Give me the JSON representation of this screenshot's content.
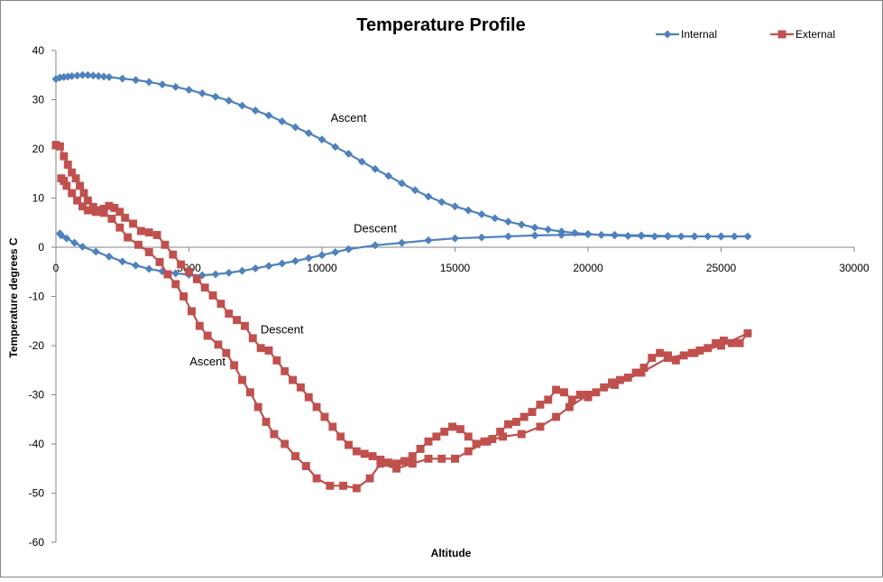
{
  "chart_data": {
    "type": "line",
    "title": "Temperature Profile",
    "xlabel": "Altitude",
    "ylabel": "Temperature degrees C",
    "xlim": [
      0,
      30000
    ],
    "ylim": [
      -60,
      40
    ],
    "x_ticks": [
      0,
      5000,
      10000,
      15000,
      20000,
      25000,
      30000
    ],
    "y_ticks": [
      40,
      30,
      20,
      10,
      0,
      -10,
      -20,
      -30,
      -40,
      -50,
      -60
    ],
    "grid": "horizontal major at 0 only",
    "legend_position": "top-right",
    "colors": {
      "internal": "#4f81bd",
      "external": "#c0504d",
      "axis": "#868686",
      "text": "#000000"
    },
    "series": [
      {
        "name": "Internal",
        "marker": "diamond",
        "color": "#4f81bd",
        "points": [
          [
            0,
            34.2
          ],
          [
            150,
            34.5
          ],
          [
            300,
            34.6
          ],
          [
            450,
            34.7
          ],
          [
            600,
            34.8
          ],
          [
            800,
            34.9
          ],
          [
            1000,
            35.0
          ],
          [
            1200,
            35.0
          ],
          [
            1400,
            34.9
          ],
          [
            1600,
            34.8
          ],
          [
            1800,
            34.7
          ],
          [
            2000,
            34.6
          ],
          [
            2500,
            34.3
          ],
          [
            3000,
            34.0
          ],
          [
            3500,
            33.6
          ],
          [
            4000,
            33.1
          ],
          [
            4500,
            32.6
          ],
          [
            5000,
            32.0
          ],
          [
            5500,
            31.3
          ],
          [
            6000,
            30.6
          ],
          [
            6500,
            29.8
          ],
          [
            7000,
            28.8
          ],
          [
            7500,
            27.8
          ],
          [
            8000,
            26.8
          ],
          [
            8500,
            25.6
          ],
          [
            9000,
            24.4
          ],
          [
            9500,
            23.2
          ],
          [
            10000,
            21.9
          ],
          [
            10500,
            20.4
          ],
          [
            11000,
            19.0
          ],
          [
            11500,
            17.4
          ],
          [
            12000,
            15.9
          ],
          [
            12500,
            14.5
          ],
          [
            13000,
            13.0
          ],
          [
            13500,
            11.6
          ],
          [
            14000,
            10.3
          ],
          [
            14500,
            9.2
          ],
          [
            15000,
            8.3
          ],
          [
            15500,
            7.5
          ],
          [
            16000,
            6.7
          ],
          [
            16500,
            5.9
          ],
          [
            17000,
            5.2
          ],
          [
            17500,
            4.6
          ],
          [
            18000,
            4.0
          ],
          [
            18500,
            3.6
          ],
          [
            19000,
            3.2
          ],
          [
            19500,
            2.9
          ],
          [
            20000,
            2.7
          ],
          [
            20500,
            2.5
          ],
          [
            21000,
            2.4
          ],
          [
            21500,
            2.3
          ],
          [
            22000,
            2.3
          ],
          [
            22500,
            2.2
          ],
          [
            23000,
            2.2
          ],
          [
            23500,
            2.2
          ],
          [
            24000,
            2.2
          ],
          [
            24500,
            2.2
          ],
          [
            25000,
            2.2
          ],
          [
            25500,
            2.2
          ],
          [
            26000,
            2.2
          ],
          [
            25000,
            2.2
          ],
          [
            24000,
            2.2
          ],
          [
            23000,
            2.3
          ],
          [
            22000,
            2.4
          ],
          [
            21000,
            2.5
          ],
          [
            20000,
            2.6
          ],
          [
            19000,
            2.5
          ],
          [
            18000,
            2.4
          ],
          [
            17000,
            2.2
          ],
          [
            16000,
            2.0
          ],
          [
            15000,
            1.8
          ],
          [
            14000,
            1.4
          ],
          [
            13000,
            0.9
          ],
          [
            12000,
            0.4
          ],
          [
            11000,
            -0.4
          ],
          [
            10500,
            -1.0
          ],
          [
            10000,
            -1.6
          ],
          [
            9500,
            -2.2
          ],
          [
            9000,
            -2.8
          ],
          [
            8500,
            -3.3
          ],
          [
            8000,
            -3.8
          ],
          [
            7500,
            -4.3
          ],
          [
            7000,
            -4.8
          ],
          [
            6500,
            -5.2
          ],
          [
            6000,
            -5.5
          ],
          [
            5500,
            -5.7
          ],
          [
            5000,
            -5.6
          ],
          [
            4500,
            -5.3
          ],
          [
            4000,
            -4.9
          ],
          [
            3500,
            -4.4
          ],
          [
            3000,
            -3.7
          ],
          [
            2500,
            -2.9
          ],
          [
            2000,
            -1.9
          ],
          [
            1500,
            -0.9
          ],
          [
            1000,
            0.1
          ],
          [
            700,
            0.9
          ],
          [
            400,
            1.8
          ],
          [
            200,
            2.4
          ],
          [
            150,
            2.8
          ]
        ]
      },
      {
        "name": "External",
        "marker": "square",
        "color": "#c0504d",
        "points": [
          [
            0,
            20.8
          ],
          [
            150,
            20.5
          ],
          [
            300,
            18.5
          ],
          [
            450,
            16.8
          ],
          [
            600,
            15.2
          ],
          [
            750,
            14.0
          ],
          [
            900,
            12.5
          ],
          [
            1050,
            11.0
          ],
          [
            1200,
            9.5
          ],
          [
            1400,
            8.2
          ],
          [
            1600,
            7.5
          ],
          [
            1800,
            7.8
          ],
          [
            2000,
            8.4
          ],
          [
            2200,
            8.0
          ],
          [
            2400,
            7.2
          ],
          [
            2600,
            6.0
          ],
          [
            2900,
            4.8
          ],
          [
            3200,
            3.3
          ],
          [
            3500,
            3.0
          ],
          [
            3800,
            2.5
          ],
          [
            4100,
            0.5
          ],
          [
            4400,
            -1.5
          ],
          [
            4700,
            -3.5
          ],
          [
            5000,
            -5.0
          ],
          [
            5300,
            -6.5
          ],
          [
            5600,
            -8.2
          ],
          [
            5900,
            -9.8
          ],
          [
            6200,
            -11.5
          ],
          [
            6500,
            -13.5
          ],
          [
            6800,
            -14.8
          ],
          [
            7100,
            -16.0
          ],
          [
            7400,
            -18.5
          ],
          [
            7700,
            -20.5
          ],
          [
            8000,
            -21.0
          ],
          [
            8300,
            -23.0
          ],
          [
            8600,
            -25.2
          ],
          [
            8900,
            -27.0
          ],
          [
            9200,
            -28.5
          ],
          [
            9500,
            -30.5
          ],
          [
            9800,
            -32.5
          ],
          [
            10100,
            -34.5
          ],
          [
            10400,
            -36.5
          ],
          [
            10700,
            -38.5
          ],
          [
            11000,
            -40.2
          ],
          [
            11300,
            -41.5
          ],
          [
            11600,
            -42.0
          ],
          [
            11900,
            -42.5
          ],
          [
            12200,
            -43.2
          ],
          [
            12500,
            -43.8
          ],
          [
            12800,
            -44.0
          ],
          [
            13100,
            -43.5
          ],
          [
            13400,
            -42.5
          ],
          [
            13700,
            -41.0
          ],
          [
            14000,
            -39.5
          ],
          [
            14300,
            -38.5
          ],
          [
            14600,
            -37.5
          ],
          [
            14900,
            -36.5
          ],
          [
            15200,
            -37.0
          ],
          [
            15500,
            -38.5
          ],
          [
            15800,
            -40.0
          ],
          [
            16100,
            -39.5
          ],
          [
            16400,
            -39.0
          ],
          [
            16700,
            -37.5
          ],
          [
            17000,
            -36.0
          ],
          [
            17300,
            -35.5
          ],
          [
            17600,
            -34.5
          ],
          [
            17900,
            -33.5
          ],
          [
            18200,
            -32.0
          ],
          [
            18500,
            -31.0
          ],
          [
            18800,
            -29.0
          ],
          [
            19100,
            -29.5
          ],
          [
            19400,
            -31.0
          ],
          [
            19700,
            -30.0
          ],
          [
            20000,
            -30.5
          ],
          [
            20300,
            -29.5
          ],
          [
            20600,
            -28.5
          ],
          [
            20900,
            -27.5
          ],
          [
            21200,
            -27.0
          ],
          [
            21500,
            -26.5
          ],
          [
            21800,
            -25.5
          ],
          [
            22100,
            -24.5
          ],
          [
            22400,
            -22.5
          ],
          [
            22700,
            -21.5
          ],
          [
            23000,
            -22.0
          ],
          [
            23300,
            -23.0
          ],
          [
            23600,
            -22.0
          ],
          [
            23900,
            -21.5
          ],
          [
            24200,
            -21.0
          ],
          [
            24500,
            -20.5
          ],
          [
            24800,
            -19.5
          ],
          [
            25100,
            -19.0
          ],
          [
            25400,
            -19.5
          ],
          [
            25700,
            -19.5
          ],
          [
            26000,
            -17.5
          ],
          [
            25000,
            -20.0
          ],
          [
            24000,
            -21.5
          ],
          [
            23000,
            -22.5
          ],
          [
            22000,
            -25.5
          ],
          [
            21000,
            -28.0
          ],
          [
            20000,
            -30.0
          ],
          [
            19300,
            -32.5
          ],
          [
            18800,
            -34.5
          ],
          [
            18200,
            -36.5
          ],
          [
            17500,
            -38.0
          ],
          [
            16800,
            -38.5
          ],
          [
            16200,
            -39.5
          ],
          [
            15500,
            -41.5
          ],
          [
            15000,
            -43.0
          ],
          [
            14500,
            -43.0
          ],
          [
            14000,
            -43.0
          ],
          [
            13400,
            -44.0
          ],
          [
            12800,
            -45.0
          ],
          [
            12200,
            -44.0
          ],
          [
            11800,
            -47.0
          ],
          [
            11300,
            -49.0
          ],
          [
            10800,
            -48.5
          ],
          [
            10300,
            -48.5
          ],
          [
            9800,
            -47.0
          ],
          [
            9400,
            -44.5
          ],
          [
            9000,
            -42.5
          ],
          [
            8600,
            -40.0
          ],
          [
            8200,
            -38.0
          ],
          [
            7900,
            -35.5
          ],
          [
            7600,
            -32.5
          ],
          [
            7300,
            -29.5
          ],
          [
            7000,
            -27.0
          ],
          [
            6700,
            -24.0
          ],
          [
            6400,
            -21.5
          ],
          [
            6100,
            -19.8
          ],
          [
            5700,
            -18.0
          ],
          [
            5400,
            -16.0
          ],
          [
            5100,
            -13.0
          ],
          [
            4800,
            -10.0
          ],
          [
            4500,
            -7.5
          ],
          [
            4200,
            -5.5
          ],
          [
            3900,
            -3.0
          ],
          [
            3500,
            -1.0
          ],
          [
            3100,
            0.5
          ],
          [
            2700,
            2.0
          ],
          [
            2400,
            4.0
          ],
          [
            2100,
            5.8
          ],
          [
            1800,
            7.0
          ],
          [
            1500,
            7.2
          ],
          [
            1200,
            7.5
          ],
          [
            1000,
            8.3
          ],
          [
            800,
            9.5
          ],
          [
            600,
            11.0
          ],
          [
            400,
            12.5
          ],
          [
            300,
            13.5
          ],
          [
            200,
            14.0
          ]
        ]
      }
    ],
    "annotations": [
      {
        "text": "Ascent",
        "series": "Internal",
        "x": 11000,
        "y": 25.5
      },
      {
        "text": "Descent",
        "series": "Internal",
        "x": 12000,
        "y": 3.0
      },
      {
        "text": "Descent",
        "series": "External",
        "x": 8500,
        "y": -17.5
      },
      {
        "text": "Ascent",
        "series": "External",
        "x": 5700,
        "y": -24.0
      }
    ]
  }
}
